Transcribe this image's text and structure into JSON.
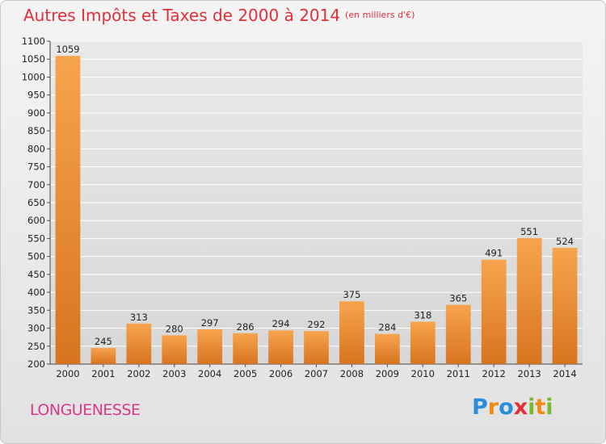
{
  "chart_data": {
    "type": "bar",
    "title": "Autres Impôts et Taxes de 2000 à 2014",
    "unit_label": "(en milliers d'€)",
    "categories": [
      "2000",
      "2001",
      "2002",
      "2003",
      "2004",
      "2005",
      "2006",
      "2007",
      "2008",
      "2009",
      "2010",
      "2011",
      "2012",
      "2013",
      "2014"
    ],
    "values": [
      1059,
      245,
      313,
      280,
      297,
      286,
      294,
      292,
      375,
      284,
      318,
      365,
      491,
      551,
      524
    ],
    "ylim": [
      200,
      1100
    ],
    "yticks": [
      200,
      250,
      300,
      350,
      400,
      450,
      500,
      550,
      600,
      650,
      700,
      750,
      800,
      850,
      900,
      950,
      1000,
      1050,
      1100
    ],
    "grid": true,
    "bar_color": "#f29a3c",
    "title_color": "#e0303a"
  },
  "location": "LONGUENESSE",
  "brand": {
    "letters": [
      "P",
      "r",
      "o",
      "x",
      "i",
      "t",
      "i"
    ]
  }
}
